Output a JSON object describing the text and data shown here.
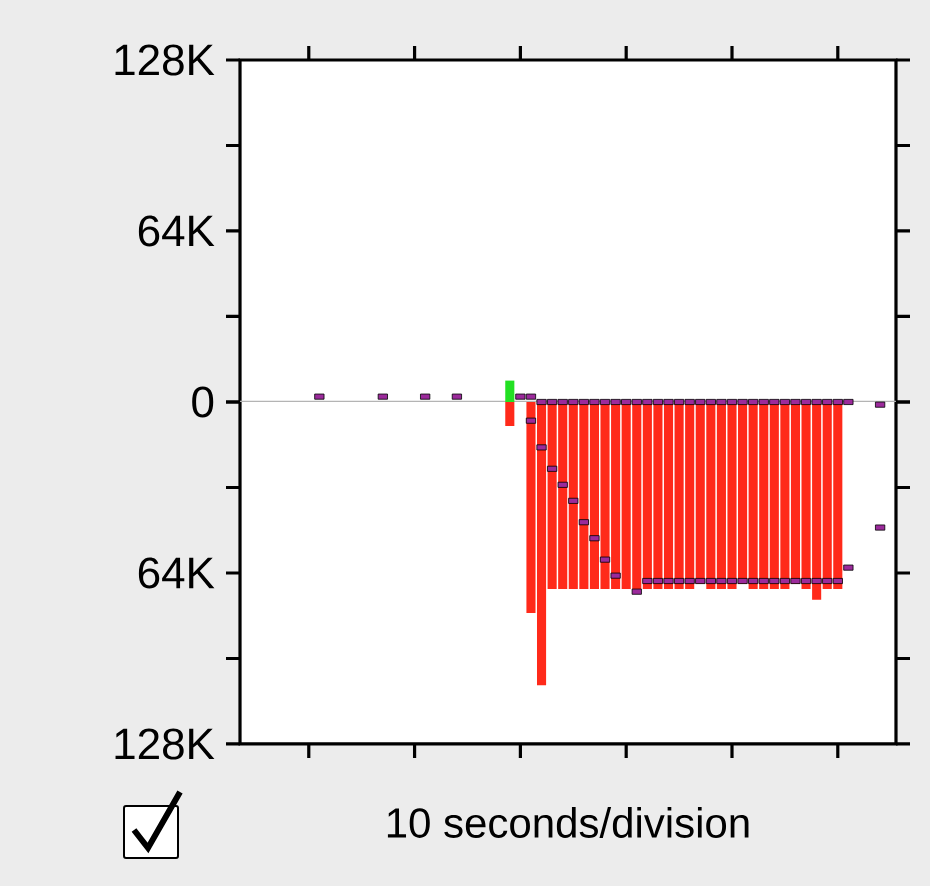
{
  "chart_data": [
    {
      "type": "bar",
      "categories": [
        null,
        null,
        null,
        null,
        null,
        null,
        null,
        null,
        null,
        null,
        null,
        null,
        null,
        null,
        null,
        null,
        null,
        null,
        null,
        null,
        null,
        null,
        null,
        null,
        null,
        null,
        null,
        null,
        null,
        null,
        null,
        null,
        null,
        null,
        null,
        null,
        null,
        null,
        null,
        null,
        null,
        null,
        null,
        null,
        null,
        null,
        null,
        null,
        null,
        null,
        null,
        null,
        null,
        null,
        null,
        null,
        null,
        null,
        null,
        null,
        null,
        null
      ],
      "ylim": [
        0,
        128
      ],
      "yticks": [
        0,
        {
          "value": 32,
          "label": null
        },
        {
          "value": 64,
          "label": "64K"
        },
        {
          "value": 96,
          "label": null
        },
        {
          "value": 128,
          "label": "128K"
        }
      ],
      "tick_labels": "y",
      "marker": "square",
      "ref_lines": [
        {
          "axis": "y",
          "value": 0,
          "color": "#b4b4b4"
        }
      ],
      "series": [
        {
          "type": "bar",
          "color": "#22e022",
          "values": [
            null,
            null,
            null,
            null,
            null,
            null,
            null,
            null,
            null,
            null,
            null,
            null,
            null,
            null,
            null,
            null,
            null,
            null,
            null,
            null,
            null,
            null,
            null,
            null,
            null,
            8,
            null,
            null,
            null,
            null,
            null,
            null,
            null,
            null,
            null,
            null,
            null,
            null,
            null,
            null,
            null,
            null,
            null,
            null,
            null,
            null,
            null,
            null,
            null,
            null,
            null,
            null,
            null,
            null,
            null,
            null,
            null,
            null,
            null,
            null,
            null,
            null
          ]
        },
        {
          "type": "scatter",
          "color": "#9b2a9b",
          "values": [
            null,
            null,
            null,
            null,
            null,
            null,
            null,
            2,
            null,
            null,
            null,
            null,
            null,
            2,
            null,
            null,
            null,
            2,
            null,
            null,
            2,
            null,
            null,
            null,
            null,
            null,
            2,
            2,
            null,
            null,
            null,
            null,
            null,
            null,
            null,
            null,
            null,
            null,
            null,
            null,
            null,
            null,
            null,
            null,
            null,
            null,
            null,
            null,
            null,
            null,
            null,
            null,
            null,
            null,
            null,
            null,
            null,
            null,
            null,
            null,
            null,
            null
          ]
        }
      ]
    },
    {
      "type": "bar",
      "categories": [
        null,
        null,
        null,
        null,
        null,
        null,
        null,
        null,
        null,
        null,
        null,
        null,
        null,
        null,
        null,
        null,
        null,
        null,
        null,
        null,
        null,
        null,
        null,
        null,
        null,
        null,
        null,
        null,
        null,
        null,
        null,
        null,
        null,
        null,
        null,
        null,
        null,
        null,
        null,
        null,
        null,
        null,
        null,
        null,
        null,
        null,
        null,
        null,
        null,
        null,
        null,
        null,
        null,
        null,
        null,
        null,
        null,
        null,
        null,
        null,
        null,
        null
      ],
      "xlabel": "10 seconds/division",
      "ylim": [
        128,
        0
      ],
      "yticks": [
        {
          "value": 0,
          "label": null
        },
        {
          "value": 32,
          "label": null
        },
        {
          "value": 64,
          "label": "64K"
        },
        {
          "value": 96,
          "label": null
        },
        {
          "value": 128,
          "label": "128K"
        }
      ],
      "tick_labels": "y",
      "marker": "square",
      "series": [
        {
          "type": "bar",
          "color": "#ff2a1a",
          "values": [
            null,
            null,
            null,
            null,
            null,
            null,
            null,
            null,
            null,
            null,
            null,
            null,
            null,
            null,
            null,
            null,
            null,
            null,
            null,
            null,
            null,
            null,
            null,
            null,
            null,
            9,
            null,
            79,
            106,
            70,
            70,
            70,
            70,
            70,
            70,
            70,
            70,
            70,
            70,
            70,
            70,
            70,
            70,
            68,
            70,
            70,
            70,
            68,
            70,
            70,
            70,
            70,
            68,
            70,
            74,
            70,
            70,
            null,
            null,
            null,
            null,
            null
          ]
        },
        {
          "type": "scatter",
          "color": "#9b2a9b",
          "values": [
            null,
            null,
            null,
            null,
            null,
            null,
            null,
            null,
            null,
            null,
            null,
            null,
            null,
            null,
            null,
            null,
            null,
            null,
            null,
            null,
            null,
            null,
            null,
            null,
            null,
            null,
            null,
            null,
            0,
            0,
            0,
            0,
            0,
            0,
            0,
            0,
            0,
            0,
            0,
            0,
            0,
            0,
            0,
            0,
            0,
            0,
            0,
            0,
            0,
            0,
            0,
            0,
            0,
            0,
            0,
            0,
            0,
            0,
            null,
            null,
            1,
            null
          ]
        },
        {
          "type": "scatter",
          "color": "#9b2a9b",
          "values": [
            null,
            null,
            null,
            null,
            null,
            null,
            null,
            null,
            null,
            null,
            null,
            null,
            null,
            null,
            null,
            null,
            null,
            null,
            null,
            null,
            null,
            null,
            null,
            null,
            null,
            null,
            null,
            7,
            17,
            25,
            31,
            37,
            45,
            51,
            59,
            65,
            null,
            71,
            67,
            67,
            67,
            67,
            67,
            67,
            67,
            67,
            67,
            67,
            67,
            67,
            67,
            67,
            67,
            67,
            67,
            67,
            67,
            62,
            null,
            null,
            47,
            null
          ]
        }
      ]
    }
  ]
}
